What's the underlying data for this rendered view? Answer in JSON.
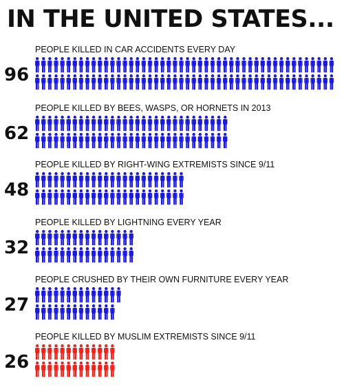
{
  "title": "IN THE UNITED STATES...",
  "chart_data": {
    "type": "pictogram",
    "title": "IN THE UNITED STATES...",
    "unit": "1 figure = 1 person",
    "categories": [
      "PEOPLE KILLED IN CAR ACCIDENTS EVERY DAY",
      "PEOPLE KILLED BY BEES, WASPS, OR HORNETS IN 2013",
      "PEOPLE KILLED BY RIGHT-WING EXTREMISTS SINCE 9/11",
      "PEOPLE KILLED BY LIGHTNING EVERY YEAR",
      "PEOPLE CRUSHED BY THEIR OWN FURNITURE EVERY YEAR",
      "PEOPLE KILLED BY MUSLIM EXTREMISTS SINCE 9/11"
    ],
    "values": [
      96,
      62,
      48,
      32,
      27,
      26
    ],
    "value_labels": [
      "96",
      "62",
      "48",
      "32",
      "27",
      "26"
    ],
    "colors": [
      "#1a1adc",
      "#1a1adc",
      "#1a1adc",
      "#1a1adc",
      "#1a1adc",
      "#e8241c"
    ],
    "icon": "person-icon",
    "rows_per_item": 2
  }
}
